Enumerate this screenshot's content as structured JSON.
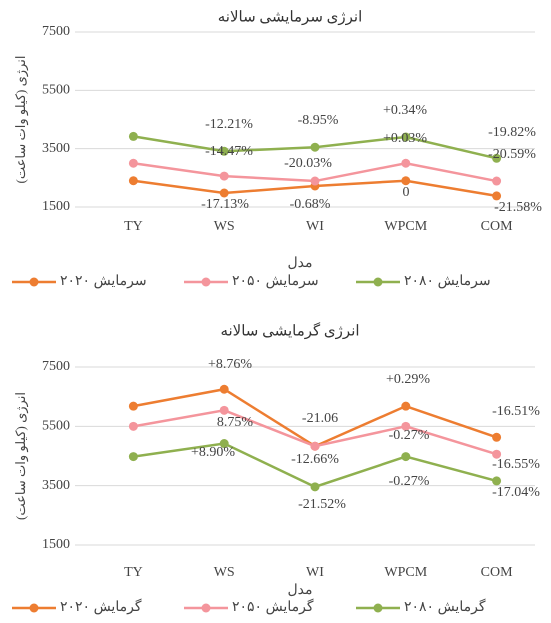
{
  "chart_data": [
    {
      "type": "line",
      "title": "انرژی سرمایشی سالانه",
      "x_label": "مدل",
      "y_label": "انرژی (کیلو وات ساعت)",
      "categories": [
        "TY",
        "WS",
        "WI",
        "WPCM",
        "COM"
      ],
      "series": [
        {
          "name": "سرمایش ۲۰۲۰",
          "color": "#ed7d31",
          "values": [
            2400,
            1980,
            2220,
            2400,
            1880
          ]
        },
        {
          "name": "سرمایش ۲۰۵۰",
          "color": "#f4959c",
          "values": [
            3000,
            2560,
            2390,
            3000,
            2390
          ]
        },
        {
          "name": "سرمایش ۲۰۸۰",
          "color": "#8fb04f",
          "values": [
            3920,
            3410,
            3550,
            3900,
            3170
          ]
        }
      ],
      "ylim": [
        1500,
        7500
      ],
      "yticks": [
        1500,
        3500,
        5500,
        7500
      ],
      "grid": true,
      "annotations": [
        "-12.21%",
        "-14.47%",
        "-17.13%",
        "-8.95%",
        "-20.03%",
        "-0.68%",
        "+0.34%",
        "+0.03%",
        "0",
        "-19.82%",
        "-20.59%",
        "-21.58%"
      ]
    },
    {
      "type": "line",
      "title": "انرژی گرمایشی سالانه",
      "x_label": "مدل",
      "y_label": "انرژی (کیلو وات ساعت)",
      "categories": [
        "TY",
        "WS",
        "WI",
        "WPCM",
        "COM"
      ],
      "series": [
        {
          "name": "گرمایش ۲۰۲۰",
          "color": "#ed7d31",
          "values": [
            6180,
            6750,
            4830,
            6180,
            5130
          ]
        },
        {
          "name": "گرمایش ۲۰۵۰",
          "color": "#f4959c",
          "values": [
            5500,
            6040,
            4830,
            5500,
            4560
          ]
        },
        {
          "name": "گرمایش ۲۰۸۰",
          "color": "#8fb04f",
          "values": [
            4480,
            4920,
            3460,
            4480,
            3660
          ]
        }
      ],
      "ylim": [
        1500,
        7500
      ],
      "yticks": [
        1500,
        3500,
        5500,
        7500
      ],
      "grid": true,
      "annotations": [
        "+8.76%",
        "8.75%",
        "+8.90%",
        "-21.06",
        "-12.66%",
        "-21.52%",
        "+0.29%",
        "-0.27%",
        "-0.27%",
        "-16.51%",
        "-16.55%",
        "-17.04%"
      ]
    }
  ]
}
